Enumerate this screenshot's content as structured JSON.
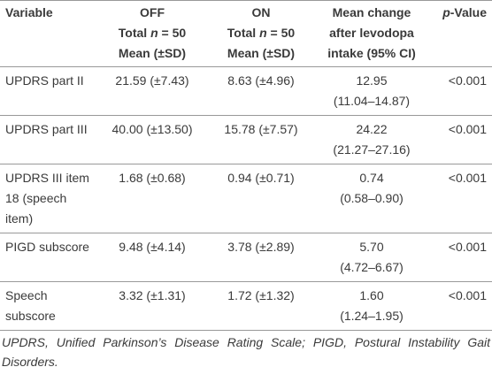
{
  "table": {
    "header": {
      "variable": "Variable",
      "off": {
        "title": "OFF",
        "total_label": "Total",
        "n_symbol": "n",
        "n_value": "= 50",
        "stat": "Mean (±SD)"
      },
      "on": {
        "title": "ON",
        "total_label": "Total",
        "n_symbol": "n",
        "n_value": "= 50",
        "stat": "Mean (±SD)"
      },
      "change": "Mean change after levodopa intake (95% CI)",
      "p_symbol": "p",
      "p_rest": "-Value"
    },
    "rows": [
      [
        "UPDRS part II",
        "21.59 (±7.43)",
        "8.63 (±4.96)",
        "12.95",
        "(11.04–14.87)",
        "<0.001"
      ],
      [
        "UPDRS part III",
        "40.00 (±13.50)",
        "15.78 (±7.57)",
        "24.22",
        "(21.27–27.16)",
        "<0.001"
      ],
      [
        "UPDRS III item 18 (speech item)",
        "1.68 (±0.68)",
        "0.94 (±0.71)",
        "0.74",
        "(0.58–0.90)",
        "<0.001"
      ],
      [
        "PIGD subscore",
        "9.48 (±4.14)",
        "3.78 (±2.89)",
        "5.70",
        "(4.72–6.67)",
        "<0.001"
      ],
      [
        "Speech subscore",
        "3.32 (±1.31)",
        "1.72 (±1.32)",
        "1.60",
        "(1.24–1.95)",
        "<0.001"
      ]
    ],
    "footnote": "UPDRS, Unified Parkinson’s Disease Rating Scale; PIGD, Postural Instability Gait Disorders."
  }
}
